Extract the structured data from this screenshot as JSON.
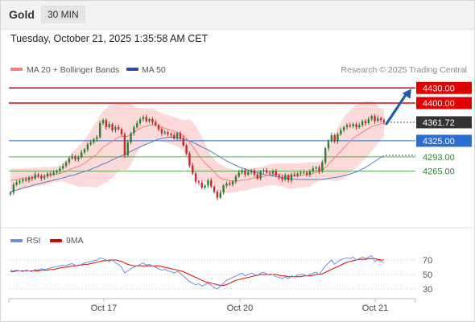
{
  "header": {
    "instrument": "Gold",
    "interval": "30 MIN",
    "timestamp": "Tuesday, October 21, 2025 1:35:58 AM CET",
    "credit": "Research © 2025 Trading Central"
  },
  "colors": {
    "bull": "#2e7d32",
    "bear": "#c62828",
    "resistance": "#e00000",
    "support_blue": "#2a6ed2",
    "support_green": "#2e8b2e",
    "ma20": "#f08080",
    "bands_fill": "#fbd3d3",
    "ma50": "#5b7fbf",
    "rsi": "#6f8fd8",
    "rsi_ma": "#e00000",
    "arrow": "#1f5fa8"
  },
  "chart_data": [
    {
      "type": "candlestick",
      "legend": [
        {
          "name": "MA 20 + Bollinger Bands",
          "color": "#f08080"
        },
        {
          "name": "MA 50",
          "color": "#2a4fa0"
        }
      ],
      "legend_position": "top-left",
      "x_labels": [
        "Oct 17",
        "Oct 20",
        "Oct 21"
      ],
      "ylim": [
        4160,
        4448
      ],
      "levels": [
        {
          "label": "4430.00",
          "value": 4430,
          "kind": "resistance"
        },
        {
          "label": "4400.00",
          "value": 4400,
          "kind": "resistance"
        },
        {
          "label": "4361.72",
          "value": 4361.72,
          "kind": "last"
        },
        {
          "label": "4325.00",
          "value": 4325,
          "kind": "pivot"
        },
        {
          "label": "4293.00",
          "value": 4293,
          "kind": "support"
        },
        {
          "label": "4265.00",
          "value": 4265,
          "kind": "support"
        }
      ],
      "close": [
        4222,
        4238,
        4242,
        4245,
        4248,
        4246,
        4252,
        4250,
        4258,
        4255,
        4250,
        4254,
        4260,
        4258,
        4262,
        4265,
        4270,
        4275,
        4282,
        4290,
        4294,
        4288,
        4292,
        4302,
        4308,
        4318,
        4322,
        4328,
        4332,
        4360,
        4366,
        4352,
        4358,
        4346,
        4352,
        4348,
        4338,
        4296,
        4322,
        4340,
        4352,
        4360,
        4368,
        4372,
        4364,
        4368,
        4362,
        4356,
        4348,
        4340,
        4342,
        4338,
        4336,
        4330,
        4340,
        4330,
        4316,
        4300,
        4276,
        4260,
        4244,
        4242,
        4232,
        4236,
        4246,
        4234,
        4224,
        4212,
        4222,
        4236,
        4240,
        4238,
        4244,
        4254,
        4262,
        4266,
        4258,
        4262,
        4266,
        4258,
        4250,
        4264,
        4266,
        4262,
        4260,
        4264,
        4256,
        4252,
        4248,
        4256,
        4246,
        4258,
        4256,
        4260,
        4262,
        4262,
        4258,
        4264,
        4270,
        4272,
        4264,
        4282,
        4310,
        4324,
        4336,
        4324,
        4338,
        4346,
        4352,
        4356,
        4354,
        4358,
        4352,
        4356,
        4364,
        4360,
        4368,
        4374,
        4364,
        4370,
        4366,
        4362
      ],
      "ma20": [
        4246,
        4247,
        4248,
        4249,
        4250,
        4250,
        4251,
        4252,
        4253,
        4254,
        4254,
        4255,
        4256,
        4257,
        4258,
        4259,
        4260,
        4262,
        4264,
        4267,
        4270,
        4272,
        4274,
        4277,
        4280,
        4285,
        4290,
        4294,
        4298,
        4306,
        4312,
        4316,
        4320,
        4324,
        4328,
        4332,
        4334,
        4333,
        4334,
        4338,
        4342,
        4346,
        4350,
        4353,
        4354,
        4356,
        4357,
        4356,
        4355,
        4352,
        4350,
        4348,
        4346,
        4344,
        4342,
        4339,
        4336,
        4330,
        4322,
        4314,
        4305,
        4296,
        4288,
        4281,
        4275,
        4269,
        4263,
        4256,
        4251,
        4248,
        4247,
        4246,
        4245,
        4245,
        4246,
        4247,
        4247,
        4248,
        4250,
        4251,
        4252,
        4253,
        4254,
        4256,
        4257,
        4258,
        4258,
        4258,
        4257,
        4256,
        4255,
        4255,
        4255,
        4256,
        4256,
        4257,
        4258,
        4258,
        4260,
        4262,
        4264,
        4267,
        4272,
        4278,
        4285,
        4291,
        4298,
        4304,
        4311,
        4318,
        4324,
        4330,
        4334,
        4338,
        4342,
        4346,
        4350,
        4353,
        4355,
        4357,
        4359,
        4360
      ],
      "bb_upper": [
        4270,
        4270,
        4270,
        4270,
        4271,
        4271,
        4271,
        4271,
        4272,
        4272,
        4272,
        4273,
        4273,
        4273,
        4274,
        4274,
        4276,
        4280,
        4286,
        4294,
        4302,
        4308,
        4314,
        4320,
        4327,
        4336,
        4346,
        4356,
        4364,
        4376,
        4384,
        4390,
        4394,
        4396,
        4398,
        4400,
        4400,
        4400,
        4400,
        4398,
        4394,
        4391,
        4390,
        4390,
        4389,
        4388,
        4388,
        4386,
        4383,
        4380,
        4378,
        4376,
        4374,
        4372,
        4370,
        4368,
        4366,
        4366,
        4368,
        4362,
        4354,
        4344,
        4332,
        4320,
        4306,
        4296,
        4288,
        4282,
        4278,
        4275,
        4272,
        4270,
        4268,
        4267,
        4267,
        4268,
        4268,
        4269,
        4270,
        4271,
        4272,
        4273,
        4274,
        4276,
        4278,
        4279,
        4280,
        4280,
        4280,
        4280,
        4280,
        4280,
        4280,
        4280,
        4281,
        4281,
        4282,
        4282,
        4282,
        4282,
        4282,
        4286,
        4298,
        4310,
        4324,
        4338,
        4350,
        4362,
        4372,
        4380,
        4386,
        4392,
        4396,
        4398,
        4400,
        4402,
        4404,
        4402,
        4398,
        4394,
        4390,
        4388
      ],
      "bb_lower": [
        4222,
        4224,
        4226,
        4228,
        4229,
        4229,
        4231,
        4233,
        4234,
        4236,
        4236,
        4237,
        4239,
        4241,
        4242,
        4244,
        4244,
        4244,
        4242,
        4240,
        4238,
        4236,
        4234,
        4234,
        4233,
        4234,
        4234,
        4232,
        4232,
        4236,
        4240,
        4242,
        4246,
        4252,
        4258,
        4264,
        4268,
        4266,
        4268,
        4278,
        4290,
        4301,
        4310,
        4316,
        4319,
        4324,
        4326,
        4326,
        4327,
        4324,
        4322,
        4320,
        4318,
        4316,
        4314,
        4310,
        4306,
        4294,
        4276,
        4266,
        4256,
        4248,
        4244,
        4242,
        4244,
        4242,
        4238,
        4230,
        4224,
        4221,
        4222,
        4222,
        4222,
        4223,
        4225,
        4226,
        4226,
        4227,
        4230,
        4231,
        4232,
        4233,
        4234,
        4236,
        4236,
        4237,
        4236,
        4236,
        4234,
        4232,
        4230,
        4230,
        4230,
        4232,
        4231,
        4233,
        4234,
        4234,
        4238,
        4242,
        4246,
        4248,
        4246,
        4246,
        4246,
        4244,
        4246,
        4246,
        4250,
        4256,
        4262,
        4268,
        4272,
        4278,
        4284,
        4290,
        4296,
        4304,
        4312,
        4320,
        4328,
        4332
      ],
      "ma50": [
        4223,
        4225,
        4227,
        4229,
        4231,
        4233,
        4234,
        4236,
        4238,
        4239,
        4241,
        4242,
        4244,
        4245,
        4247,
        4248,
        4250,
        4251,
        4253,
        4255,
        4256,
        4258,
        4260,
        4262,
        4264,
        4266,
        4268,
        4271,
        4273,
        4276,
        4279,
        4281,
        4284,
        4287,
        4290,
        4293,
        4295,
        4298,
        4301,
        4304,
        4307,
        4310,
        4313,
        4316,
        4318,
        4321,
        4323,
        4326,
        4328,
        4330,
        4331,
        4332,
        4332,
        4332,
        4331,
        4330,
        4329,
        4327,
        4325,
        4322,
        4319,
        4316,
        4313,
        4310,
        4307,
        4303,
        4300,
        4296,
        4292,
        4289,
        4285,
        4282,
        4279,
        4276,
        4273,
        4271,
        4269,
        4267,
        4265,
        4263,
        4262,
        4260,
        4258,
        4257,
        4256,
        4255,
        4254,
        4253,
        4252,
        4251,
        4250,
        4249,
        4249,
        4248,
        4248,
        4248,
        4248,
        4248,
        4248,
        4248,
        4248,
        4248,
        4249,
        4250,
        4251,
        4252,
        4253,
        4254,
        4256,
        4257,
        4259,
        4261,
        4263,
        4266,
        4269,
        4272,
        4276,
        4280,
        4284,
        4288,
        4292,
        4295
      ]
    },
    {
      "type": "line",
      "legend": [
        {
          "name": "RSI",
          "color": "#6f8fd8"
        },
        {
          "name": "9MA",
          "color": "#e00000"
        }
      ],
      "ylim": [
        20,
        80
      ],
      "y_ticks": [
        70,
        50,
        30
      ],
      "series": [
        {
          "name": "RSI",
          "values": [
            56,
            55,
            56,
            55,
            54,
            56,
            55,
            54,
            57,
            56,
            58,
            57,
            58,
            59,
            60,
            61,
            62,
            63,
            62,
            64,
            65,
            63,
            62,
            64,
            66,
            67,
            68,
            69,
            70,
            73,
            72,
            70,
            68,
            70,
            66,
            64,
            60,
            52,
            55,
            58,
            60,
            62,
            64,
            66,
            63,
            64,
            62,
            60,
            58,
            56,
            57,
            55,
            54,
            52,
            54,
            52,
            48,
            44,
            40,
            38,
            36,
            37,
            34,
            36,
            38,
            35,
            32,
            30,
            34,
            38,
            42,
            44,
            46,
            48,
            50,
            52,
            48,
            50,
            52,
            50,
            48,
            52,
            53,
            51,
            49,
            50,
            47,
            46,
            44,
            47,
            44,
            48,
            47,
            49,
            50,
            50,
            48,
            50,
            52,
            53,
            50,
            56,
            62,
            66,
            70,
            64,
            68,
            70,
            72,
            73,
            72,
            74,
            70,
            72,
            74,
            72,
            74,
            76,
            68,
            70,
            68,
            66
          ]
        },
        {
          "name": "9MA",
          "values": [
            54,
            54,
            55,
            55,
            55,
            55,
            55,
            55,
            55,
            55,
            56,
            56,
            56,
            57,
            57,
            58,
            59,
            60,
            60,
            61,
            62,
            62,
            63,
            63,
            64,
            64,
            65,
            66,
            67,
            68,
            69,
            69,
            70,
            70,
            70,
            69,
            68,
            66,
            64,
            63,
            62,
            62,
            62,
            62,
            62,
            62,
            62,
            62,
            62,
            61,
            60,
            59,
            58,
            57,
            56,
            55,
            54,
            52,
            50,
            48,
            46,
            44,
            42,
            40,
            39,
            38,
            37,
            36,
            35,
            35,
            36,
            38,
            40,
            42,
            43,
            44,
            45,
            46,
            47,
            48,
            49,
            50,
            50,
            50,
            50,
            50,
            50,
            49,
            48,
            48,
            47,
            47,
            47,
            47,
            47,
            48,
            48,
            48,
            49,
            50,
            50,
            51,
            53,
            55,
            57,
            59,
            61,
            63,
            65,
            67,
            68,
            69,
            70,
            71,
            71,
            71,
            72,
            72,
            72,
            71,
            70,
            70
          ]
        }
      ]
    }
  ]
}
